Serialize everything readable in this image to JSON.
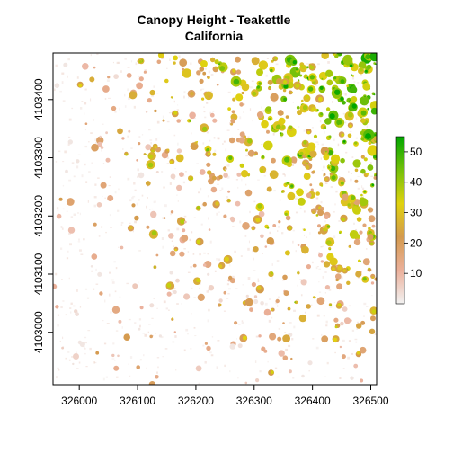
{
  "chart_data": {
    "type": "heatmap",
    "title": "Canopy Height - Teakettle",
    "subtitle": "California",
    "xlabel": "",
    "ylabel": "",
    "xlim": [
      325955,
      326510
    ],
    "ylim": [
      4102910,
      4103480
    ],
    "x_ticks": [
      326000,
      326100,
      326200,
      326300,
      326400,
      326500
    ],
    "y_ticks": [
      4103000,
      4103100,
      4103200,
      4103300,
      4103400
    ],
    "x_tick_labels": [
      "326000",
      "326100",
      "326200",
      "326300",
      "326400",
      "326500"
    ],
    "y_tick_labels": [
      "4103000",
      "4103100",
      "4103200",
      "4103300",
      "4103400"
    ],
    "colorbar": {
      "range": [
        0,
        55
      ],
      "ticks": [
        10,
        20,
        30,
        40,
        50
      ],
      "tick_labels": [
        "10",
        "20",
        "30",
        "40",
        "50"
      ],
      "colors": [
        "#f2f2f2",
        "#ebb09b",
        "#d49a4e",
        "#e0d20f",
        "#74c00a",
        "#00a600"
      ]
    },
    "legend": "right",
    "grid": false
  }
}
